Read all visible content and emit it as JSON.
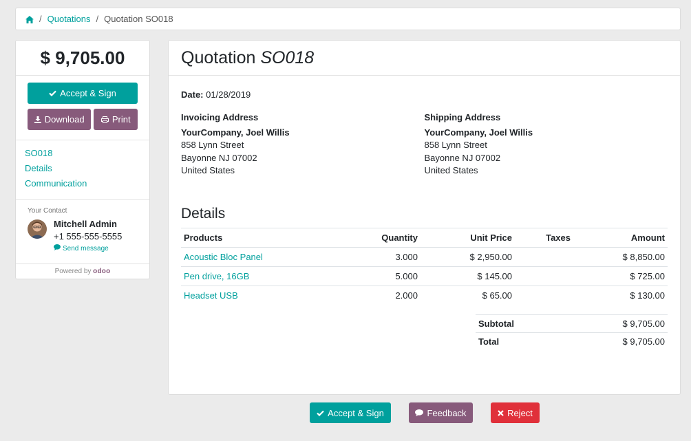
{
  "breadcrumb": {
    "home_icon": "home-icon",
    "quotations": "Quotations",
    "current": "Quotation SO018"
  },
  "sidebar": {
    "amount_total": "$ 9,705.00",
    "accept_label": "Accept & Sign",
    "download_label": "Download",
    "print_label": "Print",
    "nav": [
      "SO018",
      "Details",
      "Communication"
    ],
    "contact": {
      "label": "Your Contact",
      "name": "Mitchell Admin",
      "phone": "+1 555-555-5555",
      "send_message": "Send message"
    },
    "powered_by": "Powered by",
    "powered_brand": "odoo"
  },
  "main": {
    "title_prefix": "Quotation",
    "title_number": "SO018",
    "date_label": "Date:",
    "date_value": "01/28/2019",
    "invoicing": {
      "title": "Invoicing Address",
      "name": "YourCompany, Joel Willis",
      "street": "858 Lynn Street",
      "city": "Bayonne NJ 07002",
      "country": "United States"
    },
    "shipping": {
      "title": "Shipping Address",
      "name": "YourCompany, Joel Willis",
      "street": "858 Lynn Street",
      "city": "Bayonne NJ 07002",
      "country": "United States"
    },
    "details_title": "Details",
    "columns": {
      "products": "Products",
      "quantity": "Quantity",
      "unit_price": "Unit Price",
      "taxes": "Taxes",
      "amount": "Amount"
    },
    "lines": [
      {
        "product": "Acoustic Bloc Panel",
        "quantity": "3.000",
        "unit_price": "$ 2,950.00",
        "taxes": "",
        "amount": "$ 8,850.00"
      },
      {
        "product": "Pen drive, 16GB",
        "quantity": "5.000",
        "unit_price": "$ 145.00",
        "taxes": "",
        "amount": "$ 725.00"
      },
      {
        "product": "Headset USB",
        "quantity": "2.000",
        "unit_price": "$ 65.00",
        "taxes": "",
        "amount": "$ 130.00"
      }
    ],
    "subtotal_label": "Subtotal",
    "subtotal_value": "$ 9,705.00",
    "total_label": "Total",
    "total_value": "$ 9,705.00"
  },
  "bottom": {
    "accept_label": "Accept & Sign",
    "feedback_label": "Feedback",
    "reject_label": "Reject"
  },
  "colors": {
    "primary": "#00a09d",
    "secondary": "#875a7b",
    "danger": "#e0303a"
  }
}
